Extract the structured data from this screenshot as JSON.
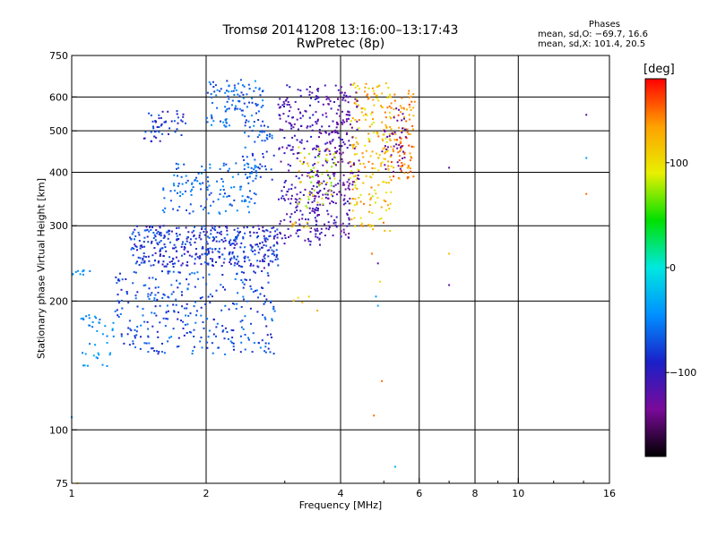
{
  "chart_data": {
    "type": "scatter",
    "title": "Tromsø 20141208 13:16:00–13:17:43",
    "subtitle": "RwPretec (8p)",
    "xlabel": "Frequency [MHz]",
    "ylabel": "Stationary phase Virtual Height [km]",
    "x_scale": "log",
    "y_scale": "log",
    "xlim": [
      1,
      16
    ],
    "ylim": [
      75,
      750
    ],
    "x_ticks": [
      1,
      2,
      4,
      6,
      8,
      10,
      16
    ],
    "x_tick_labels": [
      "1",
      "2",
      "4",
      "6",
      "8",
      "10",
      "16"
    ],
    "y_ticks": [
      75,
      100,
      200,
      300,
      400,
      500,
      600,
      750
    ],
    "y_tick_labels": [
      "75",
      "100",
      "200",
      "300",
      "400",
      "500",
      "600",
      "750"
    ],
    "grid": true,
    "legend": {
      "title": "Phases",
      "lines": [
        "mean, sd,O: −69.7, 16.6",
        "mean, sd,X: 101.4, 20.5"
      ]
    },
    "colorbar": {
      "label": "[deg]",
      "range": [
        -180,
        180
      ],
      "ticks": [
        100,
        0,
        -100
      ],
      "tick_labels": [
        "100",
        "0",
        "−100"
      ],
      "colors": [
        "#000000",
        "#7a0a9a",
        "#1a20c8",
        "#0090ff",
        "#00e8e0",
        "#00e000",
        "#e8f000",
        "#ffa000",
        "#ff0000"
      ]
    },
    "groups": [
      {
        "f": [
          1.35,
          2.9
        ],
        "h": [
          240,
          300
        ],
        "n": 420,
        "phase": [
          -110,
          -60
        ]
      },
      {
        "f": [
          1.25,
          2.85
        ],
        "h": [
          150,
          235
        ],
        "n": 320,
        "phase": [
          -95,
          -50
        ]
      },
      {
        "f": [
          1.05,
          1.25
        ],
        "h": [
          140,
          190
        ],
        "n": 40,
        "phase": [
          -60,
          -30
        ]
      },
      {
        "f": [
          1.0,
          1.1
        ],
        "h": [
          228,
          238
        ],
        "n": 10,
        "phase": [
          -50,
          -40
        ]
      },
      {
        "f": [
          1.6,
          2.6
        ],
        "h": [
          320,
          420
        ],
        "n": 140,
        "phase": [
          -80,
          -40
        ]
      },
      {
        "f": [
          1.45,
          1.8
        ],
        "h": [
          470,
          560
        ],
        "n": 50,
        "phase": [
          -110,
          -60
        ]
      },
      {
        "f": [
          2.0,
          2.7
        ],
        "h": [
          510,
          660
        ],
        "n": 110,
        "phase": [
          -85,
          -40
        ]
      },
      {
        "f": [
          2.4,
          2.9
        ],
        "h": [
          380,
          520
        ],
        "n": 50,
        "phase": [
          -90,
          -50
        ]
      },
      {
        "f": [
          2.9,
          3.6
        ],
        "h": [
          270,
          640
        ],
        "n": 230,
        "phase": [
          -130,
          -90
        ]
      },
      {
        "f": [
          3.5,
          4.2
        ],
        "h": [
          280,
          640
        ],
        "n": 200,
        "phase": [
          -135,
          -95
        ]
      },
      {
        "f": [
          3.2,
          3.9
        ],
        "h": [
          330,
          460
        ],
        "n": 60,
        "phase": [
          60,
          130
        ]
      },
      {
        "f": [
          4.2,
          5.2
        ],
        "h": [
          290,
          650
        ],
        "n": 220,
        "phase": [
          80,
          150
        ]
      },
      {
        "f": [
          5.2,
          5.9
        ],
        "h": [
          380,
          620
        ],
        "n": 90,
        "phase": [
          120,
          170
        ]
      },
      {
        "f": [
          3.9,
          4.4
        ],
        "h": [
          350,
          650
        ],
        "n": 60,
        "phase": [
          -140,
          -110
        ]
      },
      {
        "f": [
          4.9,
          5.6
        ],
        "h": [
          400,
          580
        ],
        "n": 40,
        "phase": [
          -140,
          -110
        ]
      },
      {
        "f": [
          3.0,
          3.6
        ],
        "h": [
          295,
          305
        ],
        "n": 8,
        "phase": [
          100,
          140
        ]
      },
      {
        "f": [
          3.1,
          3.4
        ],
        "h": [
          195,
          205
        ],
        "n": 4,
        "phase": [
          100,
          140
        ]
      }
    ],
    "points": [
      {
        "f": 3.55,
        "h": 190,
        "phase": 130
      },
      {
        "f": 4.7,
        "h": 258,
        "phase": 150
      },
      {
        "f": 4.9,
        "h": 222,
        "phase": 100
      },
      {
        "f": 4.85,
        "h": 245,
        "phase": -120
      },
      {
        "f": 4.8,
        "h": 205,
        "phase": -40
      },
      {
        "f": 4.85,
        "h": 195,
        "phase": -30
      },
      {
        "f": 4.95,
        "h": 130,
        "phase": 150
      },
      {
        "f": 4.75,
        "h": 108,
        "phase": 150
      },
      {
        "f": 5.3,
        "h": 82,
        "phase": -30
      },
      {
        "f": 7.0,
        "h": 258,
        "phase": 120
      },
      {
        "f": 7.0,
        "h": 218,
        "phase": -120
      },
      {
        "f": 7.0,
        "h": 410,
        "phase": -120
      },
      {
        "f": 14.2,
        "h": 545,
        "phase": -120
      },
      {
        "f": 14.2,
        "h": 432,
        "phase": -40
      },
      {
        "f": 14.2,
        "h": 356,
        "phase": 150
      },
      {
        "f": 2.7,
        "h": 239,
        "phase": -120
      },
      {
        "f": 1.0,
        "h": 107,
        "phase": -40
      },
      {
        "f": 1.03,
        "h": 75,
        "phase": 110
      }
    ]
  }
}
